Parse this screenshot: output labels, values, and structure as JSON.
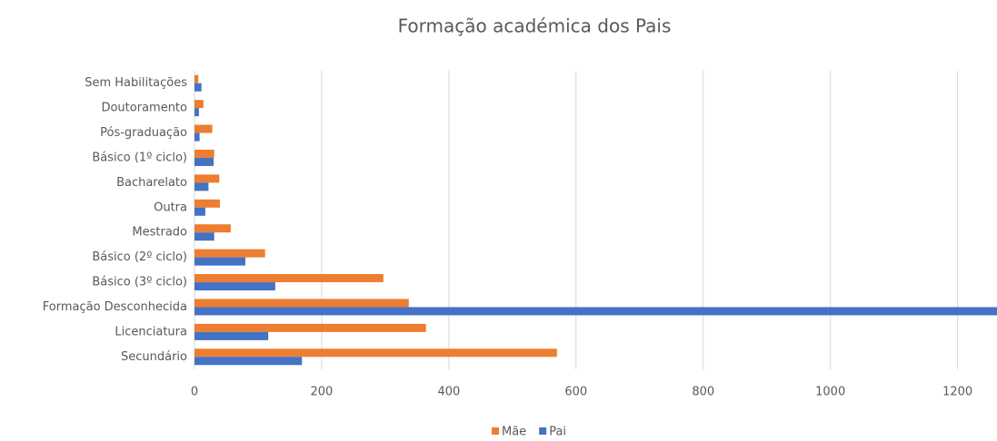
{
  "chart_data": {
    "type": "hbar",
    "title": "Formação académica dos Pais",
    "categories": [
      "Sem Habilitações",
      "Doutoramento",
      "Pós-graduação",
      "Básico (1º ciclo)",
      "Bacharelato",
      "Outra",
      "Mestrado",
      "Básico (2º ciclo)",
      "Básico (3º ciclo)",
      "Formação Desconhecida",
      "Licenciatura",
      "Secundário"
    ],
    "series": [
      {
        "name": "Mãe",
        "color": "#ed7d31",
        "values": [
          6,
          14,
          28,
          31,
          39,
          40,
          57,
          111,
          297,
          337,
          364,
          570
        ]
      },
      {
        "name": "Pai",
        "color": "#4472c4",
        "values": [
          11,
          7,
          8,
          30,
          22,
          17,
          31,
          80,
          127,
          1262,
          116,
          169
        ]
      }
    ],
    "xlim": [
      0,
      1262
    ],
    "xticks": [
      0,
      200,
      400,
      600,
      800,
      1000,
      1200
    ],
    "grid": true,
    "legend": "bottom"
  }
}
